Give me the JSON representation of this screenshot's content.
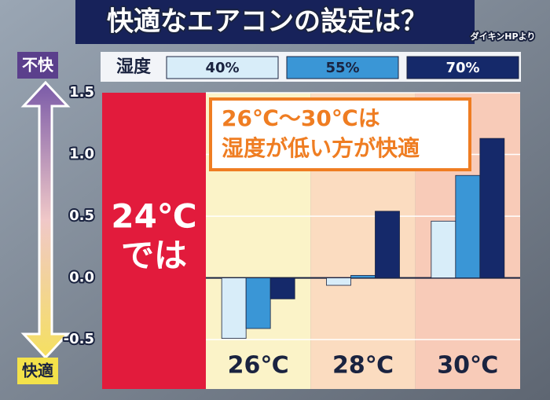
{
  "chart_data": {
    "type": "bar",
    "title": "快適なエアコンの設定は？",
    "source": "ダイキンHPより",
    "legend_title": "湿度",
    "top_label": "不快",
    "bottom_label": "快適",
    "left_panel": [
      "24℃",
      "では"
    ],
    "annotation": [
      "26℃〜30℃は",
      "湿度が低い方が快適"
    ],
    "categories": [
      "26℃",
      "28℃",
      "30℃"
    ],
    "series": [
      {
        "name": "40%",
        "color": "#d8edf9",
        "values": [
          -0.49,
          -0.06,
          0.46
        ]
      },
      {
        "name": "55%",
        "color": "#3a96d6",
        "values": [
          -0.41,
          0.02,
          0.83
        ]
      },
      {
        "name": "70%",
        "color": "#15296a",
        "values": [
          -0.17,
          0.54,
          1.13
        ]
      }
    ],
    "ylim": [
      -0.9,
      1.5
    ],
    "yticks": [
      1.5,
      {
        "value": 1,
        "label": "1.0"
      },
      0.5,
      {
        "value": 0,
        "label": "0.0"
      },
      -0.5
    ],
    "grid": true
  }
}
